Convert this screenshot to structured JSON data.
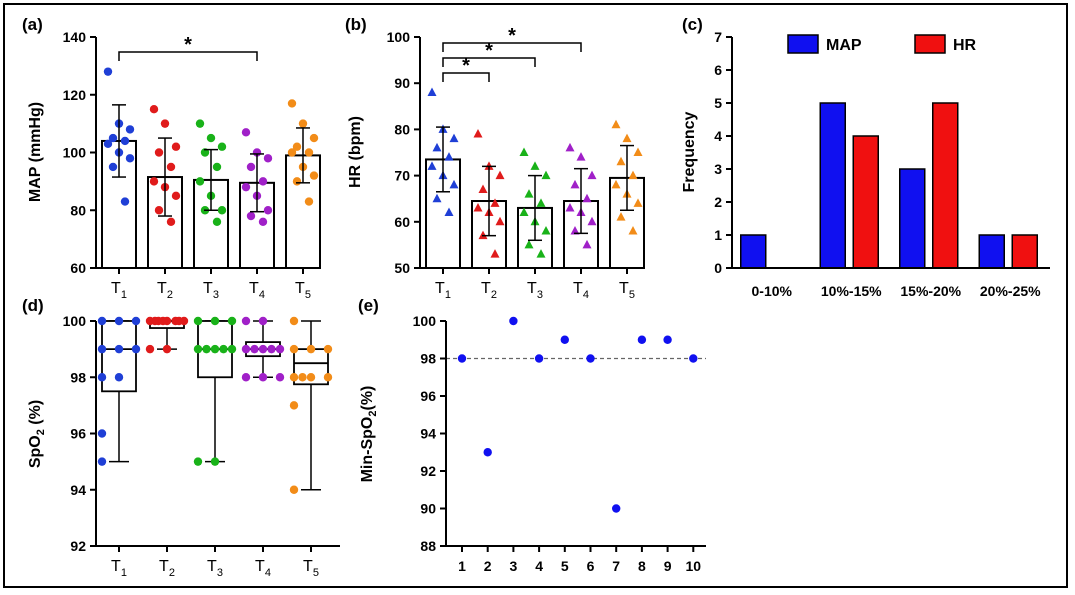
{
  "chart_data": [
    {
      "panel": "(a)",
      "type": "bar",
      "ylabel": "MAP  (mmHg)",
      "ylim": [
        60,
        140
      ],
      "yticks": [
        60,
        80,
        100,
        120,
        140
      ],
      "categories": [
        "T",
        "T",
        "T",
        "T",
        "T"
      ],
      "subscripts": [
        "1",
        "2",
        "3",
        "4",
        "5"
      ],
      "colors": [
        "#1f3fd6",
        "#e01b1b",
        "#19b219",
        "#a020c8",
        "#f28c18"
      ],
      "means": [
        104,
        91.5,
        90.5,
        89.5,
        99
      ],
      "sd": [
        12.5,
        13.5,
        10.5,
        10,
        9.5
      ],
      "points": [
        [
          128,
          110,
          108,
          105,
          104,
          103,
          100,
          98,
          95,
          83
        ],
        [
          115,
          110,
          102,
          100,
          95,
          90,
          88,
          85,
          80,
          76
        ],
        [
          110,
          105,
          102,
          100,
          95,
          90,
          85,
          80,
          80,
          76
        ],
        [
          107,
          100,
          98,
          95,
          90,
          88,
          85,
          80,
          78,
          76
        ],
        [
          117,
          110,
          105,
          102,
          100,
          100,
          95,
          92,
          90,
          83
        ]
      ],
      "significance": [
        {
          "from": 1,
          "to": 4,
          "label": "*"
        }
      ]
    },
    {
      "panel": "(b)",
      "type": "bar",
      "ylabel": "HR (bpm)",
      "ylim": [
        50,
        100
      ],
      "yticks": [
        50,
        60,
        70,
        80,
        90,
        100
      ],
      "categories": [
        "T",
        "T",
        "T",
        "T",
        "T"
      ],
      "subscripts": [
        "1",
        "2",
        "3",
        "4",
        "5"
      ],
      "colors": [
        "#1f3fd6",
        "#e01b1b",
        "#19b219",
        "#a020c8",
        "#f28c18"
      ],
      "means": [
        73.5,
        64.5,
        63,
        64.5,
        69.5
      ],
      "sd": [
        7,
        7.5,
        7,
        7,
        7
      ],
      "points": [
        [
          88,
          80,
          78,
          76,
          74,
          72,
          70,
          68,
          65,
          62
        ],
        [
          79,
          72,
          70,
          67,
          64,
          63,
          62,
          60,
          57,
          53
        ],
        [
          75,
          72,
          70,
          66,
          64,
          62,
          60,
          58,
          55,
          53
        ],
        [
          76,
          74,
          70,
          68,
          65,
          63,
          62,
          60,
          58,
          55
        ],
        [
          81,
          78,
          75,
          73,
          70,
          68,
          66,
          64,
          61,
          58
        ]
      ],
      "significance": [
        {
          "from": 1,
          "to": 2,
          "label": "*"
        },
        {
          "from": 1,
          "to": 3,
          "label": "*"
        },
        {
          "from": 1,
          "to": 4,
          "label": "*"
        }
      ]
    },
    {
      "panel": "(c)",
      "type": "bar",
      "ylabel": "Frequency",
      "ylim": [
        0,
        7
      ],
      "yticks": [
        0,
        1,
        2,
        3,
        4,
        5,
        6,
        7
      ],
      "categories": [
        "0-10%",
        "10%-15%",
        "15%-20%",
        "20%-25%"
      ],
      "series": [
        {
          "name": "MAP",
          "color": "#1010f0",
          "values": [
            1,
            5,
            3,
            1
          ]
        },
        {
          "name": "HR",
          "color": "#f01010",
          "values": [
            0,
            4,
            5,
            1
          ]
        }
      ],
      "legend": "top"
    },
    {
      "panel": "(d)",
      "type": "box",
      "ylabel_main": "SpO",
      "ylabel_sub": "2",
      "ylabel_tail": " (%)",
      "ylim": [
        92,
        100
      ],
      "yticks": [
        92,
        94,
        96,
        98,
        100
      ],
      "categories": [
        "T",
        "T",
        "T",
        "T",
        "T"
      ],
      "subscripts": [
        "1",
        "2",
        "3",
        "4",
        "5"
      ],
      "colors": [
        "#1f3fd6",
        "#e01b1b",
        "#19b219",
        "#a020c8",
        "#f28c18"
      ],
      "boxes": [
        {
          "min": 95,
          "q1": 97.5,
          "median": 99,
          "q3": 100,
          "max": 100
        },
        {
          "min": 99,
          "q1": 99.75,
          "median": 100,
          "q3": 100,
          "max": 100
        },
        {
          "min": 95,
          "q1": 98,
          "median": 99,
          "q3": 100,
          "max": 100
        },
        {
          "min": 98,
          "q1": 98.75,
          "median": 99,
          "q3": 99.25,
          "max": 100
        },
        {
          "min": 94,
          "q1": 97.75,
          "median": 98.5,
          "q3": 99,
          "max": 100
        }
      ],
      "points": [
        [
          100,
          100,
          100,
          99,
          99,
          99,
          98,
          98,
          96,
          95
        ],
        [
          100,
          100,
          100,
          100,
          100,
          100,
          100,
          100,
          99,
          99
        ],
        [
          100,
          100,
          100,
          99,
          99,
          99,
          99,
          99,
          95,
          95
        ],
        [
          100,
          100,
          99,
          99,
          99,
          99,
          99,
          98,
          98,
          98
        ],
        [
          100,
          99,
          99,
          99,
          98,
          98,
          98,
          98,
          97,
          94
        ]
      ]
    },
    {
      "panel": "(e)",
      "type": "scatter",
      "ylabel_main": "Min-SpO",
      "ylabel_sub": "2",
      "ylabel_tail": "(%)",
      "ylim": [
        88,
        100
      ],
      "yticks": [
        88,
        90,
        92,
        94,
        96,
        98,
        100
      ],
      "x": [
        1,
        2,
        3,
        4,
        5,
        6,
        7,
        8,
        9,
        10
      ],
      "y": [
        98,
        93,
        100,
        98,
        99,
        98,
        90,
        99,
        99,
        98
      ],
      "color": "#1010f0",
      "reference_line": 98
    }
  ]
}
